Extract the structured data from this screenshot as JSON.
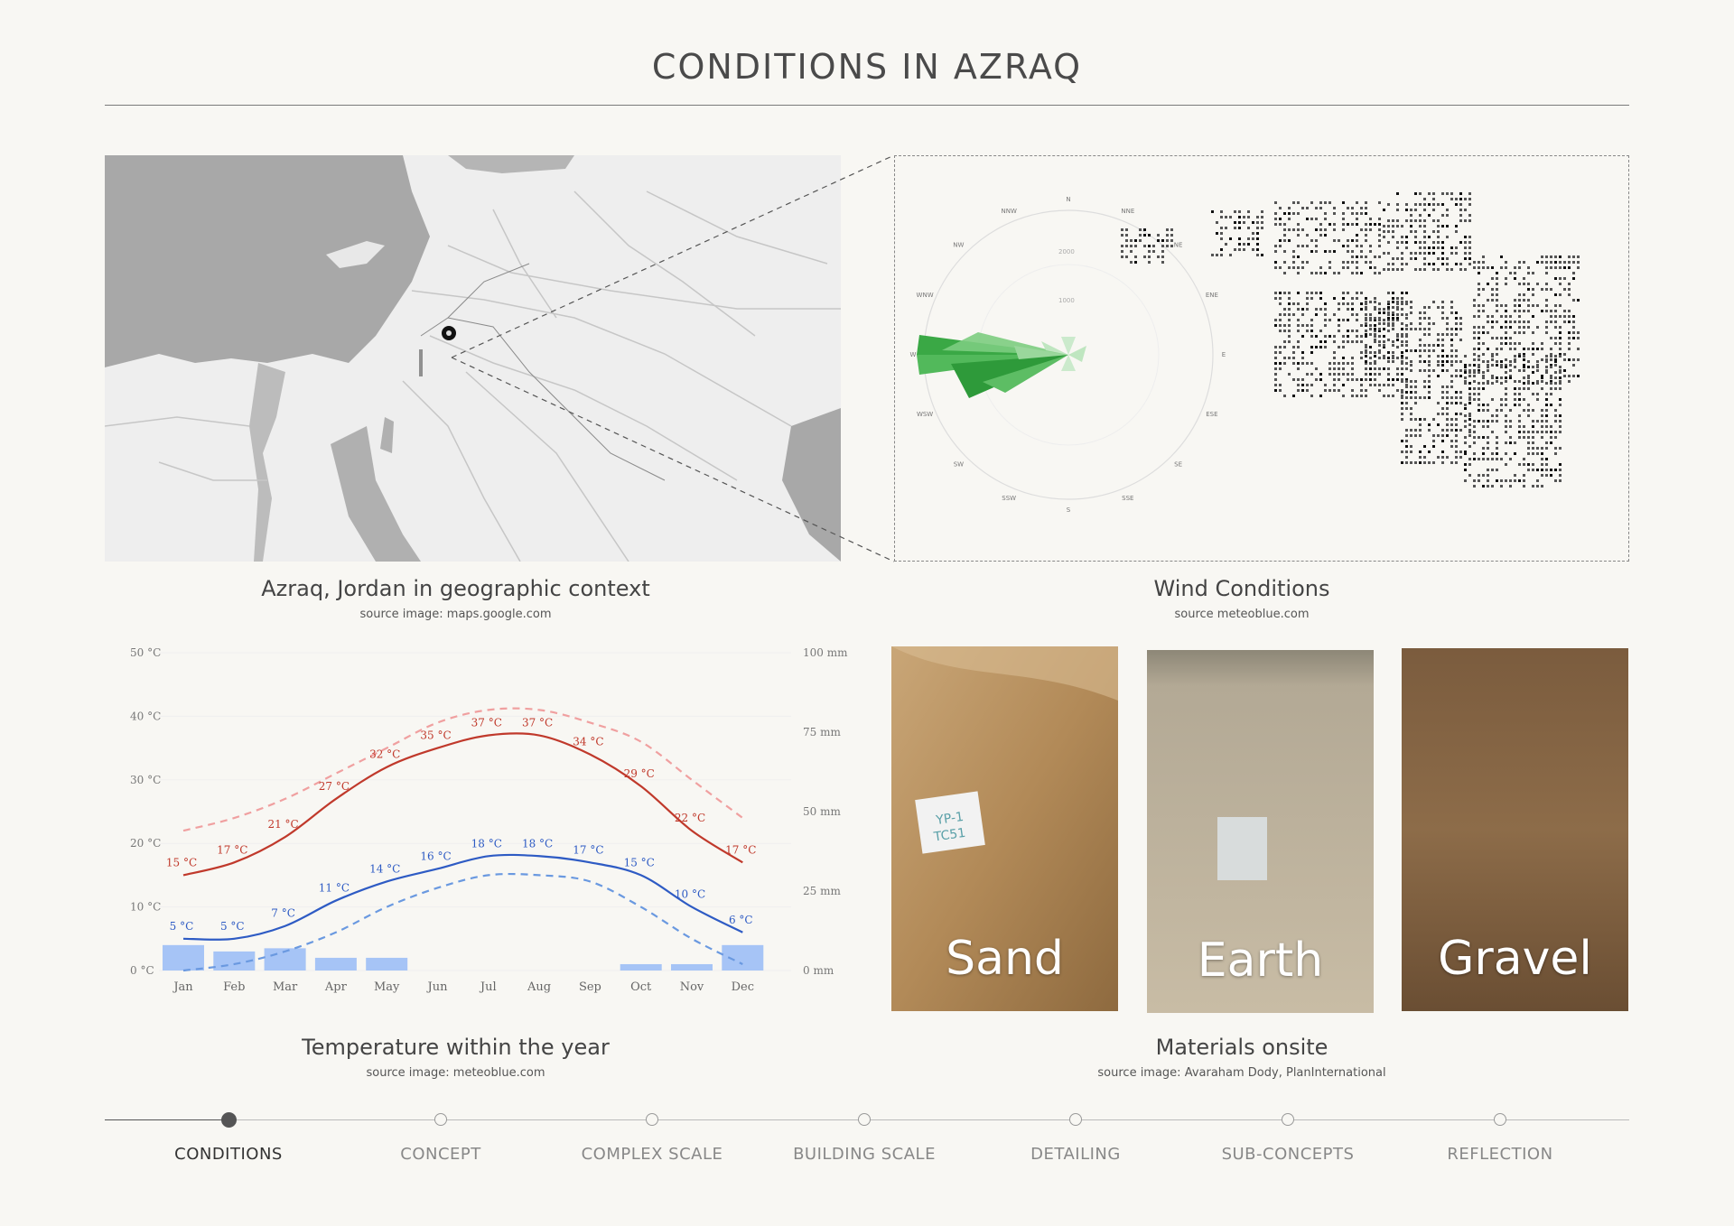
{
  "page": {
    "title": "CONDITIONS IN AZRAQ"
  },
  "map": {
    "caption": "Azraq, Jordan in geographic context",
    "source": "source image: maps.google.com"
  },
  "wind": {
    "caption": "Wind Conditions",
    "source": "source meteoblue.com",
    "directions": [
      "N",
      "NNE",
      "NE",
      "ENE",
      "E",
      "ESE",
      "SE",
      "SSE",
      "S",
      "SSW",
      "SW",
      "WSW",
      "W",
      "WNW",
      "NW",
      "NNW"
    ],
    "ring_labels": [
      "2000",
      "1000"
    ]
  },
  "temperature": {
    "caption": "Temperature within the year",
    "source": "source image: meteoblue.com"
  },
  "materials": {
    "caption": "Materials onsite",
    "source": "source image: Avaraham Dody, PlanInternational",
    "items": [
      {
        "label": "Sand",
        "color": "#b08a5c"
      },
      {
        "label": "Earth",
        "color": "#b9ad96"
      },
      {
        "label": "Gravel",
        "color": "#8a6a48"
      }
    ]
  },
  "nav": {
    "items": [
      {
        "label": "CONDITIONS",
        "active": true
      },
      {
        "label": "CONCEPT",
        "active": false
      },
      {
        "label": "COMPLEX SCALE",
        "active": false
      },
      {
        "label": "BUILDING SCALE",
        "active": false
      },
      {
        "label": "DETAILING",
        "active": false
      },
      {
        "label": "SUB-CONCEPTS",
        "active": false
      },
      {
        "label": "REFLECTION",
        "active": false
      }
    ]
  },
  "chart_data": {
    "type": "line",
    "categories": [
      "Jan",
      "Feb",
      "Mar",
      "Apr",
      "May",
      "Jun",
      "Jul",
      "Aug",
      "Sep",
      "Oct",
      "Nov",
      "Dec"
    ],
    "y_left_ticks": [
      "50 °C",
      "40 °C",
      "30 °C",
      "20 °C",
      "10 °C",
      "0 °C"
    ],
    "y_right_ticks": [
      "100 mm",
      "75 mm",
      "50 mm",
      "25 mm",
      "0 mm"
    ],
    "ylim": [
      0,
      50
    ],
    "y2lim": [
      0,
      100
    ],
    "series": [
      {
        "values": [
          15,
          17,
          21,
          27,
          32,
          35,
          37,
          37,
          34,
          29,
          22,
          17
        ],
        "labels": [
          "15 °C",
          "17 °C",
          "21 °C",
          "27 °C",
          "32 °C",
          "35 °C",
          "37 °C",
          "37 °C",
          "34 °C",
          "29 °C",
          "22 °C",
          "17 °C"
        ],
        "color": "#c0392b",
        "style": "solid"
      },
      {
        "values": [
          5,
          5,
          7,
          11,
          14,
          16,
          18,
          18,
          17,
          15,
          10,
          6
        ],
        "labels": [
          "5 °C",
          "5 °C",
          "7 °C",
          "11 °C",
          "14 °C",
          "16 °C",
          "18 °C",
          "18 °C",
          "17 °C",
          "15 °C",
          "10 °C",
          "6 °C"
        ],
        "color": "#2e5bc4",
        "style": "solid"
      },
      {
        "values": [
          22,
          24,
          27,
          31,
          35,
          39,
          41,
          41,
          39,
          36,
          30,
          24
        ],
        "color": "#f0a0a0",
        "style": "dashed"
      },
      {
        "values": [
          0,
          1,
          3,
          6,
          10,
          13,
          15,
          15,
          14,
          10,
          5,
          1
        ],
        "color": "#6a99e0",
        "style": "dashed"
      }
    ],
    "precipitation_mm": [
      8,
      6,
      7,
      4,
      4,
      0,
      0,
      0,
      0,
      2,
      2,
      8
    ],
    "precipitation_color": "#a6c4f6"
  }
}
